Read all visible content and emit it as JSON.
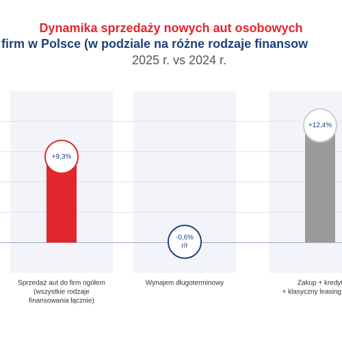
{
  "chart_data": {
    "type": "bar",
    "title": [
      "Dynamika sprzedaży nowych aut osobowych",
      "firm w Polsce (w podziale na różne rodzaje finansow"
    ],
    "subtitle": "2025 r. vs 2024 r.",
    "categories": [
      [
        "Sprzedaż aut do firm ogółem",
        "(wszystkie rodzaje",
        "finansowania łącznie)"
      ],
      [
        "Wynajem długoterminowy"
      ],
      [
        "Zakup + kredyt",
        "+ klasyczny leasing finan"
      ]
    ],
    "values": [
      9.3,
      -0.6,
      12.4
    ],
    "value_labels": [
      [
        "+9,3%"
      ],
      [
        "-0,6%",
        "r/r"
      ],
      [
        "+12,4%"
      ]
    ],
    "colors": [
      "#e1262d",
      "#1d3f7c",
      "#9b9b9b"
    ],
    "ylim": [
      -3,
      15
    ],
    "yticks": [
      0,
      3,
      6,
      9,
      12
    ],
    "grid": true
  }
}
